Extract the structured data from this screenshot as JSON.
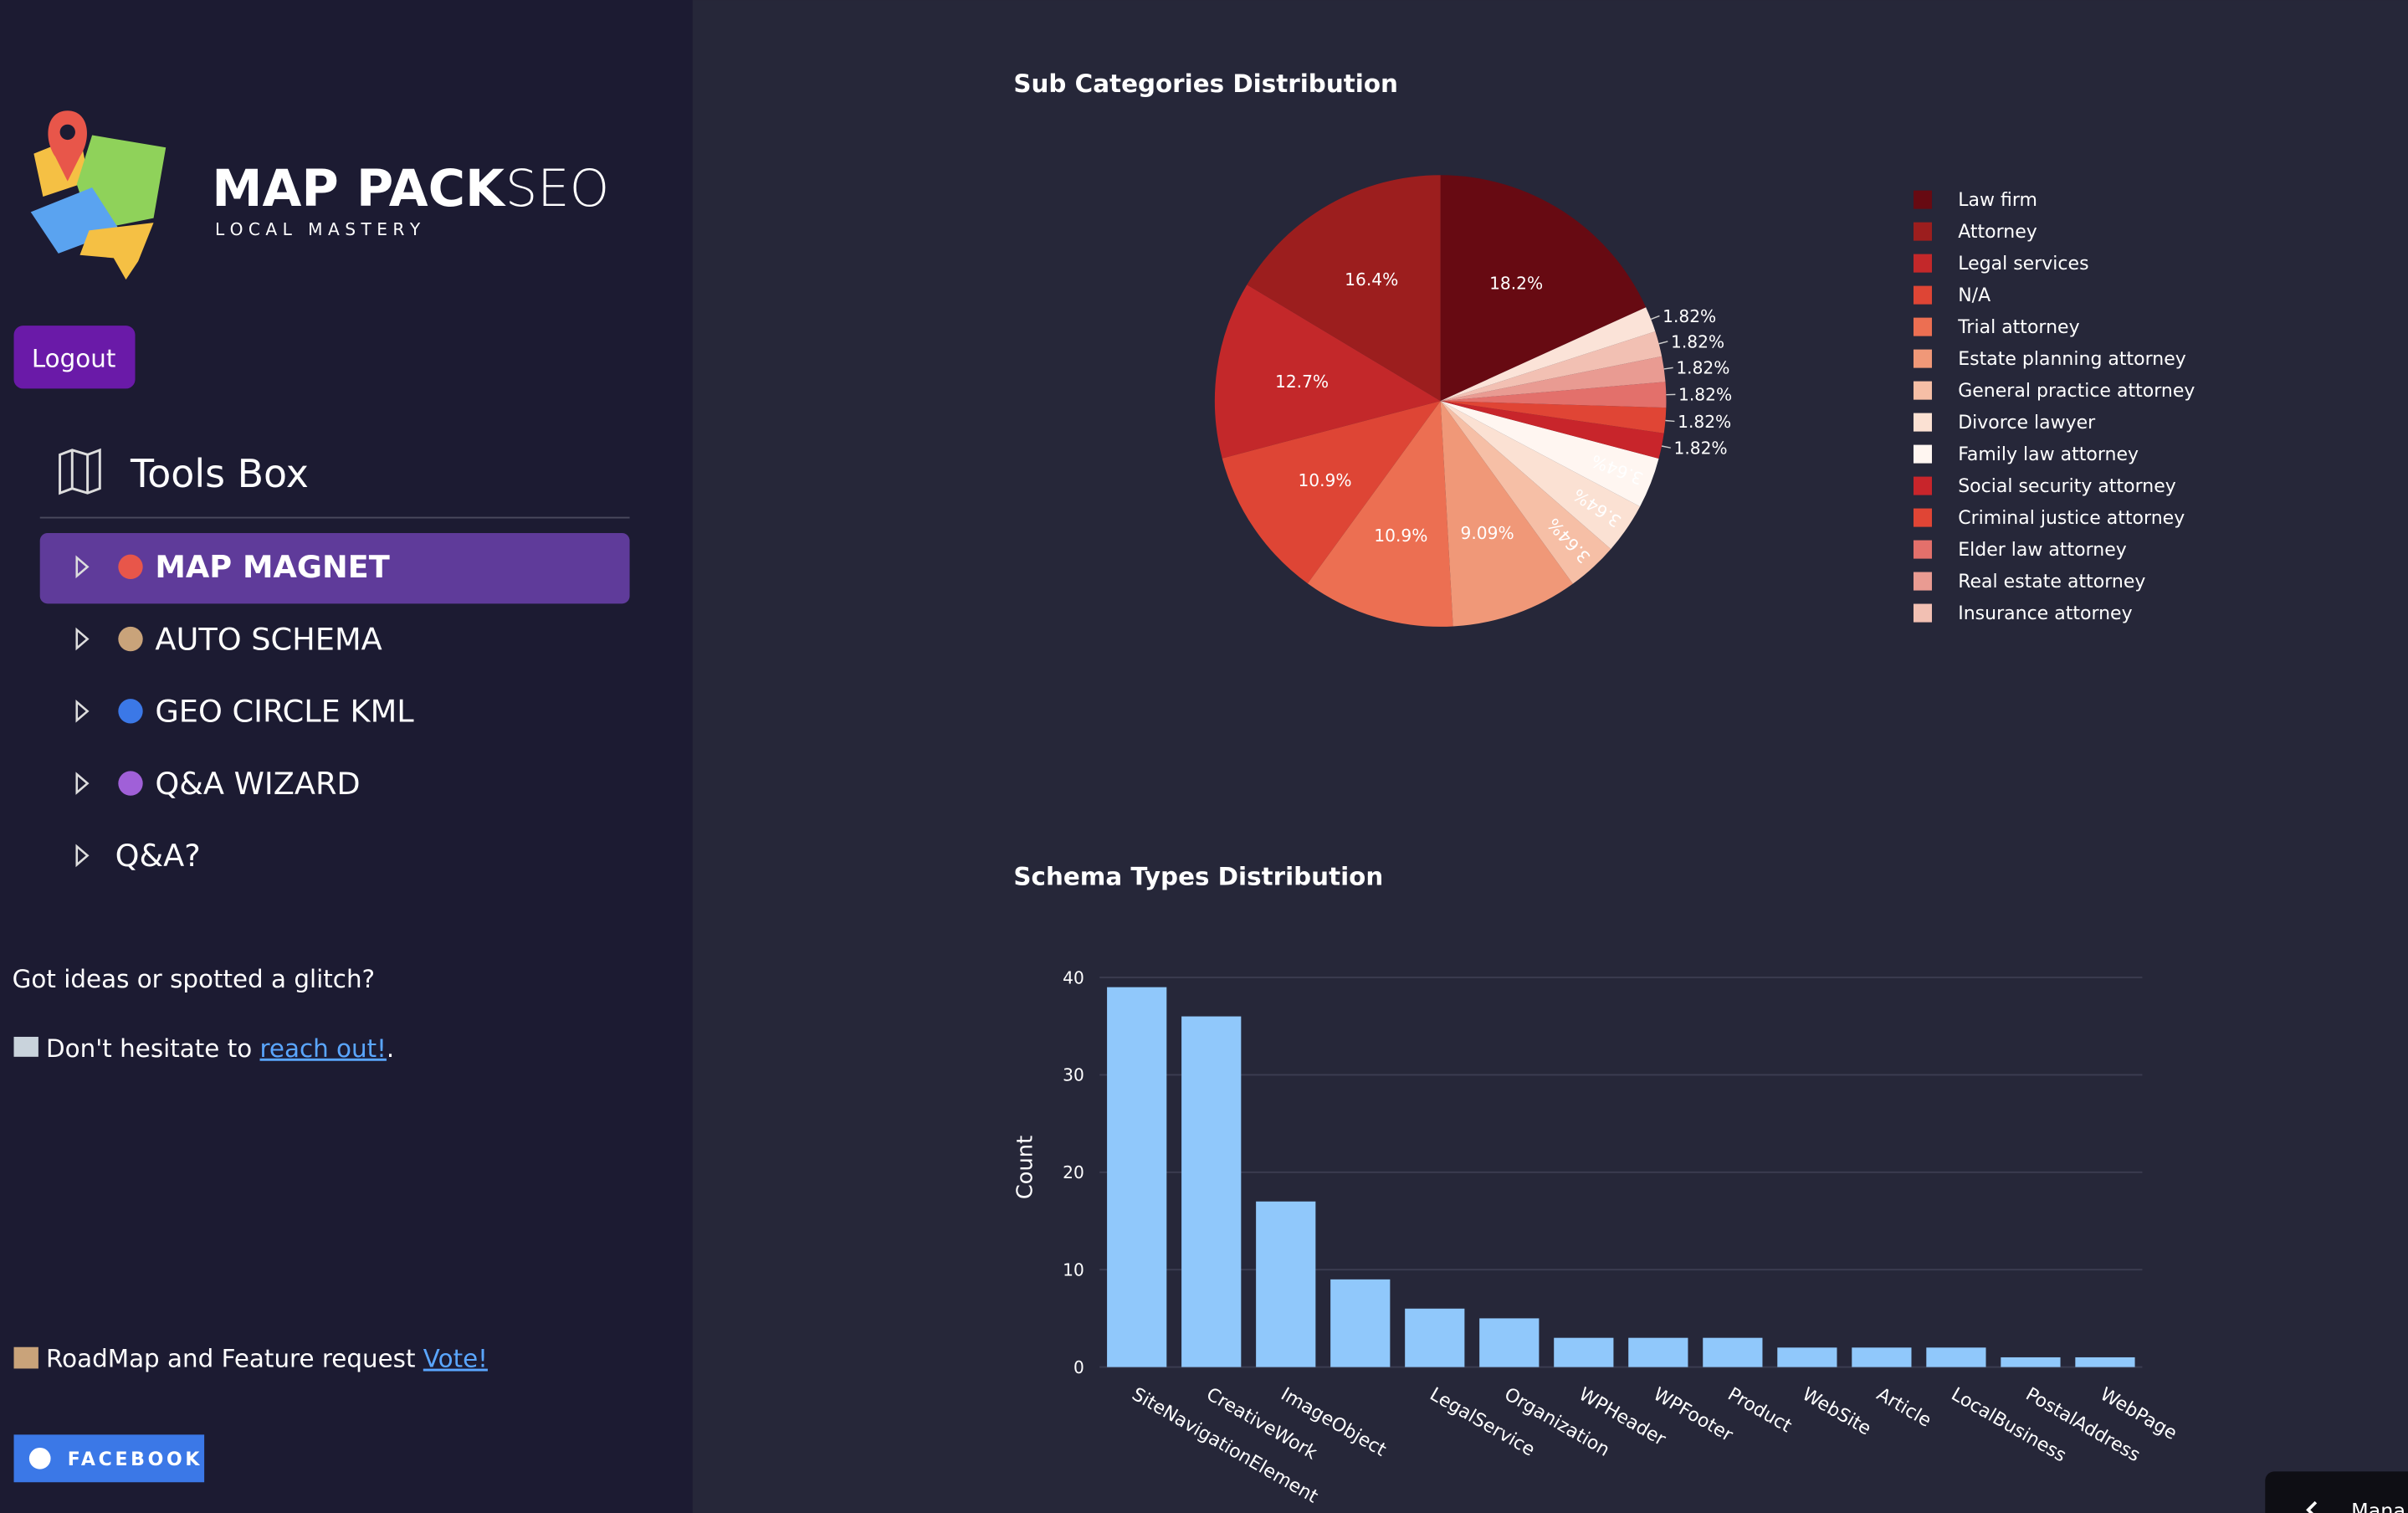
{
  "sidebar": {
    "logo_title": "MAP PACK",
    "logo_title_2": "SEO",
    "logo_subtitle": "L O C A L   M A S T E R Y",
    "logout": "Logout",
    "section": "Tools Box",
    "menu": [
      "MAP MAGNET",
      "AUTO SCHEMA",
      "GEO CIRCLE KML",
      "Q&A WIZARD",
      "Q&A?"
    ],
    "feedback": "Got ideas or spotted a glitch?",
    "contact_text": "Don't hesitate to ",
    "contact_link": "reach out!",
    "contact_end": ".",
    "roadmap_text": "RoadMap and Feature request ",
    "roadmap_link": "Vote!",
    "facebook": "FACEBOOK",
    "bottom_tab": "Mana"
  },
  "chart_data": [
    {
      "type": "pie",
      "title": "Sub Categories Distribution",
      "categories": [
        "Law firm",
        "Attorney",
        "Legal services",
        "N/A",
        "Trial attorney",
        "Estate planning attorney",
        "General practice attorney",
        "Divorce lawyer",
        "Family law attorney",
        "Social security attorney",
        "Criminal justice attorney",
        "Elder law attorney",
        "Real estate attorney",
        "Insurance attorney",
        null
      ],
      "values": [
        18.2,
        16.4,
        12.7,
        10.9,
        10.9,
        9.09,
        3.64,
        3.64,
        3.64,
        1.82,
        1.82,
        1.82,
        1.82,
        1.82,
        1.82
      ],
      "value_labels": [
        "18.2%",
        "16.4%",
        "12.7%",
        "10.9%",
        "10.9%",
        "9.09%",
        "3.64%",
        "3.64%",
        "3.64%",
        "1.82%",
        "1.82%",
        "1.82%",
        "1.82%",
        "1.82%",
        "1.82%"
      ],
      "colors": [
        "#670a12",
        "#9c1e1e",
        "#c3282a",
        "#de4535",
        "#ec6f52",
        "#f09878",
        "#f6bfa6",
        "#fbe1d3",
        "#fff6f1",
        "#c8252b",
        "#e04535",
        "#e3706b",
        "#e99b92",
        "#f2c0b3",
        "#fbe3d8"
      ],
      "legend": "right"
    },
    {
      "type": "bar",
      "title": "Schema Types Distribution",
      "y_label": "Count",
      "categories": [
        "SiteNavigationElement",
        "CreativeWork",
        "ImageObject",
        null,
        "LegalService",
        "Organization",
        "WPHeader",
        "WPFooter",
        "Product",
        "WebSite",
        "Article",
        "LocalBusiness",
        "PostalAddress",
        "WebPage"
      ],
      "values": [
        39,
        36,
        17,
        9,
        6,
        5,
        3,
        3,
        3,
        2,
        2,
        2,
        1,
        1
      ],
      "color": "#90c8fb",
      "ylim": [
        0,
        41
      ],
      "yticks": [
        0,
        10,
        20,
        30,
        40
      ],
      "grid": true
    }
  ]
}
